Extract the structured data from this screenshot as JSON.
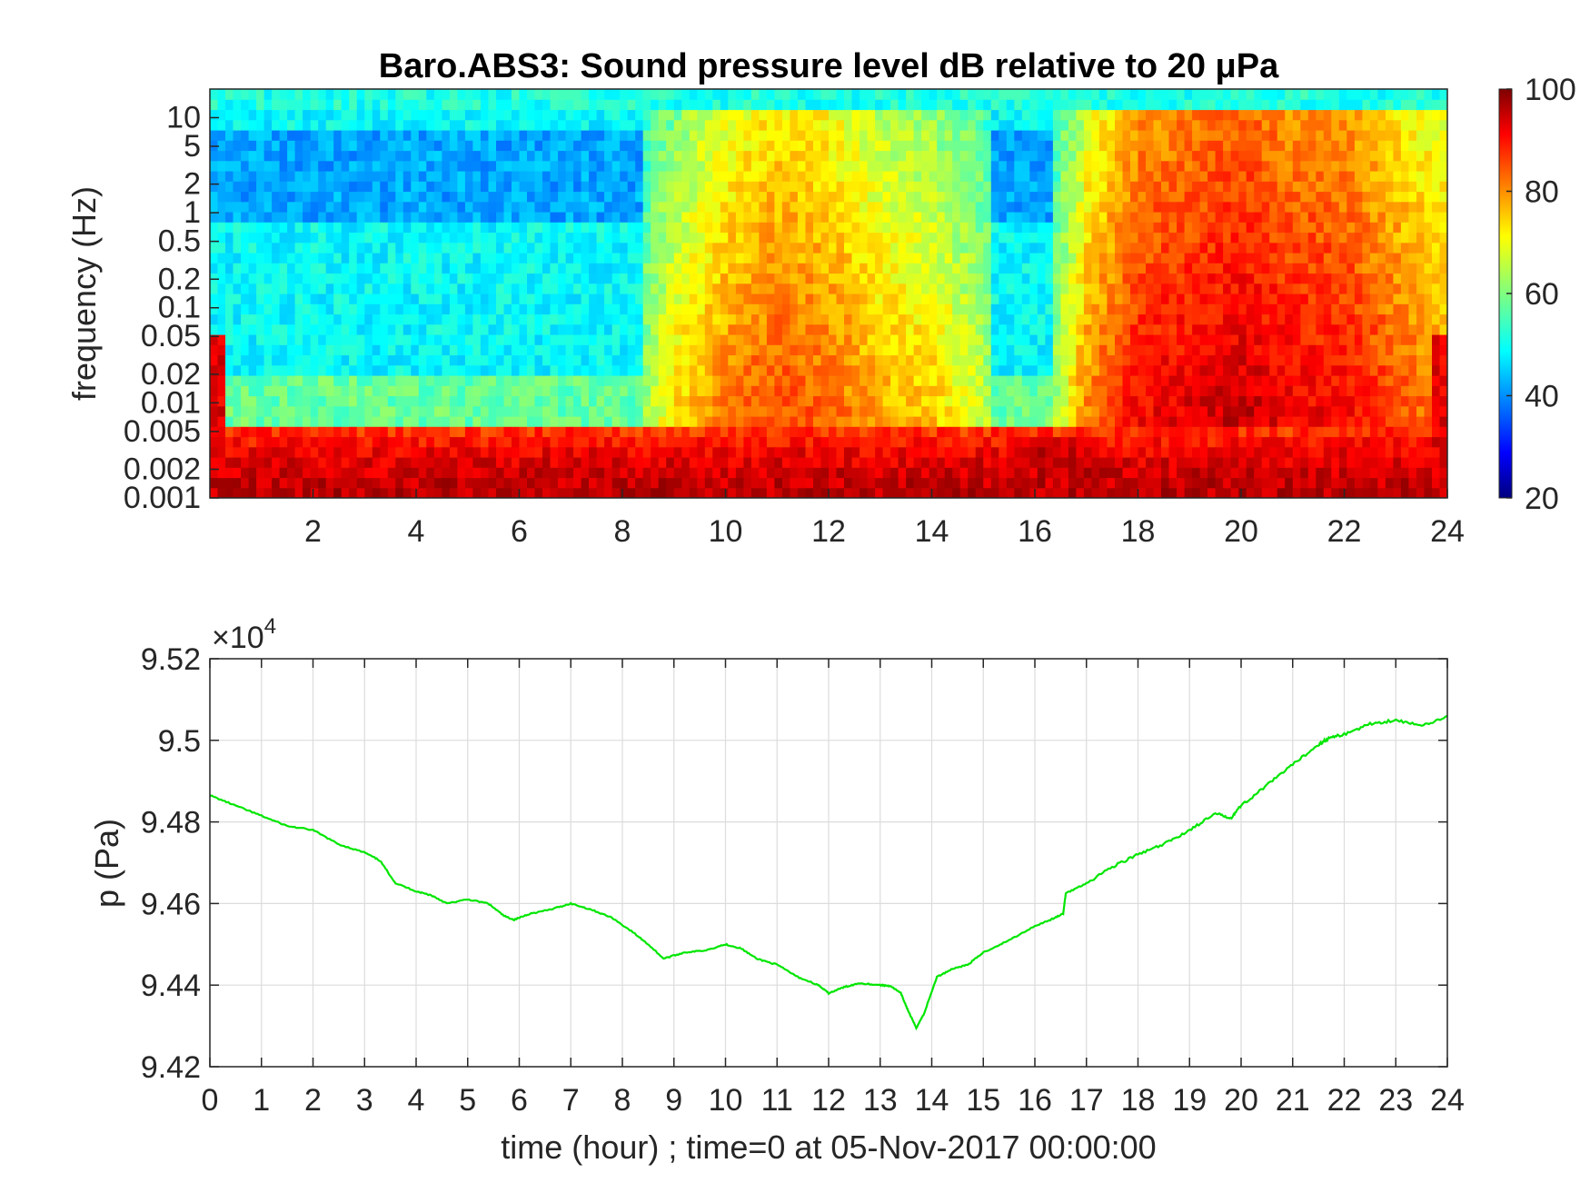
{
  "chart_data": [
    {
      "type": "heatmap",
      "title": "Baro.ABS3: Sound pressure level dB relative to 20 μPa",
      "xlabel": "",
      "ylabel": "frequency (Hz)",
      "xlim": [
        0,
        24
      ],
      "x_ticks": [
        "2",
        "4",
        "6",
        "8",
        "10",
        "12",
        "14",
        "16",
        "18",
        "20",
        "22",
        "24"
      ],
      "y_scale": "log",
      "ylim": [
        0.001,
        20
      ],
      "y_ticks": [
        "0.001",
        "0.002",
        "0.005",
        "0.01",
        "0.02",
        "0.05",
        "0.1",
        "0.2",
        "0.5",
        "1",
        "2",
        "5",
        "10"
      ],
      "colorbar": {
        "range": [
          20,
          100
        ],
        "ticks": [
          "20",
          "40",
          "60",
          "80",
          "100"
        ],
        "colormap": "jet"
      },
      "level_profile": {
        "description_values_dB_by_hour_at_0_5Hz": [
          {
            "hour": 0,
            "db": 55
          },
          {
            "hour": 2,
            "db": 52
          },
          {
            "hour": 4,
            "db": 50
          },
          {
            "hour": 6,
            "db": 50
          },
          {
            "hour": 8,
            "db": 53
          },
          {
            "hour": 9,
            "db": 68
          },
          {
            "hour": 10,
            "db": 76
          },
          {
            "hour": 11,
            "db": 80
          },
          {
            "hour": 12,
            "db": 78
          },
          {
            "hour": 13,
            "db": 72
          },
          {
            "hour": 14,
            "db": 70
          },
          {
            "hour": 15,
            "db": 62
          },
          {
            "hour": 16,
            "db": 50
          },
          {
            "hour": 17,
            "db": 75
          },
          {
            "hour": 18,
            "db": 86
          },
          {
            "hour": 19,
            "db": 88
          },
          {
            "hour": 20,
            "db": 90
          },
          {
            "hour": 21,
            "db": 87
          },
          {
            "hour": 22,
            "db": 86
          },
          {
            "hour": 23,
            "db": 80
          },
          {
            "hour": 24,
            "db": 75
          }
        ]
      }
    },
    {
      "type": "line",
      "title": "",
      "xlabel": "time (hour) ; time=0 at 05-Nov-2017 00:00:00",
      "ylabel": "p (Pa)",
      "y_exponent_label": "×10",
      "y_exponent_power": "4",
      "xlim": [
        0,
        24
      ],
      "ylim": [
        94200,
        95200
      ],
      "x_ticks": [
        "0",
        "1",
        "2",
        "3",
        "4",
        "5",
        "6",
        "7",
        "8",
        "9",
        "10",
        "11",
        "12",
        "13",
        "14",
        "15",
        "16",
        "17",
        "18",
        "19",
        "20",
        "21",
        "22",
        "23",
        "24"
      ],
      "y_ticks": [
        "9.42",
        "9.44",
        "9.46",
        "9.48",
        "9.5",
        "9.52"
      ],
      "y_tick_values": [
        94200,
        94400,
        94600,
        94800,
        95000,
        95200
      ],
      "grid": true,
      "series": [
        {
          "color": "#00e600",
          "x": [
            0,
            0.5,
            1,
            1.5,
            2,
            2.5,
            3,
            3.3,
            3.6,
            4,
            4.3,
            4.6,
            5,
            5.4,
            5.7,
            5.9,
            6.2,
            6.6,
            7,
            7.4,
            7.8,
            8.2,
            8.5,
            8.8,
            9.2,
            9.6,
            10,
            10.3,
            10.6,
            11,
            11.4,
            11.8,
            12,
            12.3,
            12.6,
            13,
            13.2,
            13.4,
            13.55,
            13.7,
            13.85,
            14.1,
            14.4,
            14.7,
            15,
            15.5,
            16,
            16.3,
            16.55,
            16.6,
            17,
            17.5,
            18,
            18.5,
            19,
            19.5,
            19.8,
            20,
            20.5,
            21,
            21.5,
            21.7,
            22,
            22.5,
            23,
            23.5,
            24
          ],
          "y": [
            94865,
            94840,
            94815,
            94790,
            94780,
            94745,
            94725,
            94705,
            94650,
            94630,
            94620,
            94600,
            94610,
            94600,
            94570,
            94560,
            94575,
            94585,
            94600,
            94585,
            94565,
            94530,
            94500,
            94465,
            94480,
            94485,
            94500,
            94490,
            94465,
            94450,
            94420,
            94400,
            94380,
            94395,
            94405,
            94400,
            94398,
            94380,
            94335,
            94295,
            94330,
            94420,
            94440,
            94450,
            94480,
            94510,
            94545,
            94560,
            94575,
            94625,
            94650,
            94690,
            94720,
            94745,
            94780,
            94820,
            94810,
            94840,
            94890,
            94940,
            94990,
            95005,
            95015,
            95040,
            95050,
            95035,
            95060
          ]
        }
      ]
    }
  ]
}
